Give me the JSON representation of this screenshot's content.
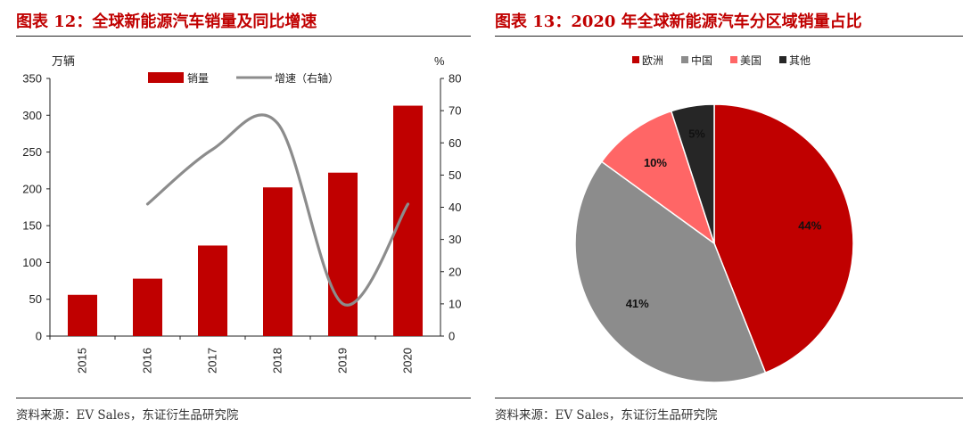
{
  "left_panel": {
    "title": "图表 12：全球新能源汽车销量及同比增速",
    "source": "资料来源：EV Sales，东证衍生品研究院"
  },
  "right_panel": {
    "title": "图表 13：2020 年全球新能源汽车分区域销量占比",
    "source": "资料来源：EV Sales，东证衍生品研究院"
  },
  "colors": {
    "red": "#c00000",
    "gray": "#8c8c8c",
    "pink": "#ff6666",
    "black": "#262626",
    "title_red": "#c00000"
  },
  "chart_data": [
    {
      "type": "bar",
      "categories": [
        "2015",
        "2016",
        "2017",
        "2018",
        "2019",
        "2020"
      ],
      "series": [
        {
          "name": "销量",
          "type": "bar",
          "axis": "left",
          "color": "#c00000",
          "values": [
            56,
            78,
            123,
            202,
            222,
            313
          ]
        },
        {
          "name": "增速（右轴）",
          "type": "line",
          "axis": "right",
          "color": "#8c8c8c",
          "values": [
            null,
            41,
            58,
            66,
            10,
            41
          ]
        }
      ],
      "ylabel": "万辆",
      "y2label": "%",
      "ylim": [
        0,
        350
      ],
      "yticks": [
        0,
        50,
        100,
        150,
        200,
        250,
        300,
        350
      ],
      "y2lim": [
        0,
        80
      ],
      "y2ticks": [
        0,
        10,
        20,
        30,
        40,
        50,
        60,
        70,
        80
      ],
      "legend_position": "top",
      "grid": false
    },
    {
      "type": "pie",
      "labels": [
        "欧洲",
        "中国",
        "美国",
        "其他"
      ],
      "values": [
        44,
        41,
        10,
        5
      ],
      "value_labels": [
        "44%",
        "41%",
        "10%",
        "5%"
      ],
      "colors": [
        "#c00000",
        "#8c8c8c",
        "#ff6666",
        "#262626"
      ],
      "legend_position": "top"
    }
  ]
}
